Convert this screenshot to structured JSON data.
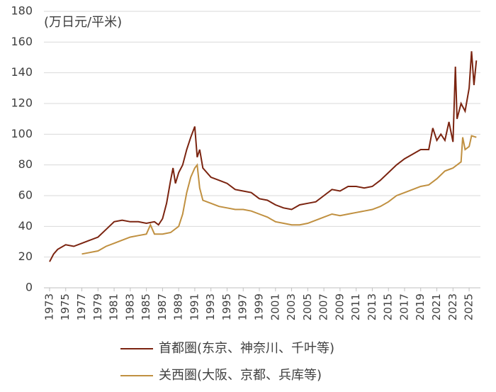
{
  "chart_data": {
    "type": "line",
    "unit_label": "(万日元/平米)",
    "series": [
      {
        "name": "首都圏(东京、神奈川、千叶等)",
        "color": "#7b2410",
        "x": [
          1973,
          1973.5,
          1974,
          1975,
          1976,
          1977,
          1978,
          1979,
          1980,
          1981,
          1982,
          1983,
          1984,
          1985,
          1986,
          1986.5,
          1987,
          1987.5,
          1988,
          1988.3,
          1988.6,
          1989,
          1989.5,
          1990,
          1990.5,
          1991,
          1991.3,
          1991.6,
          1992,
          1993,
          1994,
          1995,
          1996,
          1997,
          1998,
          1999,
          2000,
          2001,
          2002,
          2003,
          2004,
          2005,
          2006,
          2007,
          2008,
          2009,
          2010,
          2011,
          2012,
          2013,
          2014,
          2015,
          2016,
          2017,
          2018,
          2019,
          2020,
          2020.5,
          2021,
          2021.5,
          2022,
          2022.5,
          2023,
          2023.3,
          2023.5,
          2024,
          2024.5,
          2025,
          2025.3,
          2025.6,
          2025.9
        ],
        "values": [
          17,
          22,
          25,
          28,
          27,
          29,
          31,
          33,
          38,
          43,
          44,
          43,
          43,
          42,
          43,
          41,
          45,
          55,
          70,
          78,
          68,
          75,
          80,
          90,
          98,
          105,
          85,
          90,
          78,
          72,
          70,
          68,
          64,
          63,
          62,
          58,
          57,
          54,
          52,
          51,
          54,
          55,
          56,
          60,
          64,
          63,
          66,
          66,
          65,
          66,
          70,
          75,
          80,
          84,
          87,
          90,
          90,
          104,
          96,
          100,
          96,
          108,
          95,
          144,
          110,
          120,
          115,
          130,
          154,
          132,
          148
        ]
      },
      {
        "name": "关西圏(大阪、京都、兵库等)",
        "color": "#c09040",
        "x": [
          1977,
          1978,
          1979,
          1980,
          1981,
          1982,
          1983,
          1984,
          1985,
          1985.5,
          1986,
          1987,
          1988,
          1989,
          1989.5,
          1990,
          1990.5,
          1991,
          1991.3,
          1991.6,
          1992,
          1993,
          1994,
          1995,
          1996,
          1997,
          1998,
          1999,
          2000,
          2001,
          2002,
          2003,
          2004,
          2005,
          2006,
          2007,
          2008,
          2009,
          2010,
          2011,
          2012,
          2013,
          2014,
          2015,
          2016,
          2017,
          2018,
          2019,
          2020,
          2021,
          2022,
          2023,
          2024,
          2024.2,
          2024.5,
          2025,
          2025.3,
          2025.9
        ],
        "values": [
          22,
          23,
          24,
          27,
          29,
          31,
          33,
          34,
          35,
          41,
          35,
          35,
          36,
          40,
          48,
          62,
          72,
          78,
          80,
          65,
          57,
          55,
          53,
          52,
          51,
          51,
          50,
          48,
          46,
          43,
          42,
          41,
          41,
          42,
          44,
          46,
          48,
          47,
          48,
          49,
          50,
          51,
          53,
          56,
          60,
          62,
          64,
          66,
          67,
          71,
          76,
          78,
          82,
          98,
          90,
          92,
          99,
          98
        ]
      }
    ],
    "xlim": [
      1972.3,
      2026.4
    ],
    "xticks": [
      1973,
      1975,
      1977,
      1979,
      1981,
      1983,
      1985,
      1987,
      1989,
      1991,
      1993,
      1995,
      1997,
      1999,
      2001,
      2003,
      2005,
      2007,
      2009,
      2011,
      2013,
      2015,
      2017,
      2019,
      2021,
      2023,
      2025
    ],
    "ylim": [
      0,
      180
    ],
    "yticks": [
      0,
      20,
      40,
      60,
      80,
      100,
      120,
      140,
      160,
      180
    ],
    "grid": true
  }
}
